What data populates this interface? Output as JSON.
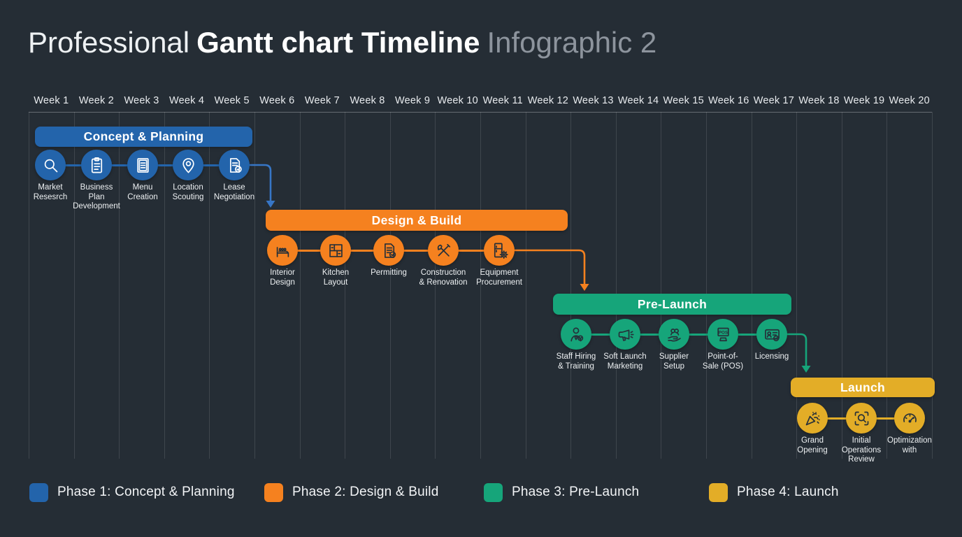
{
  "title": {
    "prefix": "Professional",
    "main": "Gantt chart Timeline",
    "suffix": "Infographic 2"
  },
  "colors": {
    "background": "#252d35",
    "phase1": "#2364ab",
    "phase2": "#f5811f",
    "phase3": "#16a57a",
    "phase4": "#e3ad27",
    "connector_blue": "#3776c6",
    "grid": "rgba(255,255,255,0.12)",
    "axis": "rgba(255,255,255,0.30)",
    "icon_light": "#ffffff",
    "icon_dark": "#263039",
    "text": "#eef1f3",
    "muted_text": "#8d949d"
  },
  "timeline": {
    "weeks": [
      "Week 1",
      "Week 2",
      "Week 3",
      "Week 4",
      "Week 5",
      "Week 6",
      "Week 7",
      "Week 8",
      "Week 9",
      "Week 10",
      "Week 11",
      "Week 12",
      "Week 13",
      "Week 14",
      "Week 15",
      "Week 16",
      "Week 17",
      "Week 18",
      "Week 19",
      "Week 20"
    ]
  },
  "chart_data": {
    "type": "gantt",
    "x_axis": {
      "unit": "week",
      "range": [
        1,
        20
      ]
    },
    "phases": [
      {
        "name": "Concept & Planning",
        "color": "#2364ab",
        "week_start": 1,
        "week_end": 5,
        "tasks": [
          {
            "icon": "search",
            "label_lines": [
              "Market",
              "Resesrch"
            ]
          },
          {
            "icon": "clipboard",
            "label_lines": [
              "Business",
              "Plan",
              "Development"
            ]
          },
          {
            "icon": "menu-card",
            "label_lines": [
              "Menu",
              "Creation"
            ]
          },
          {
            "icon": "map-pin",
            "label_lines": [
              "Location",
              "Scouting"
            ]
          },
          {
            "icon": "contract",
            "label_lines": [
              "Lease",
              "Negotiation"
            ]
          }
        ]
      },
      {
        "name": "Design & Build",
        "color": "#f5811f",
        "week_start": 6,
        "week_end": 12,
        "tasks": [
          {
            "icon": "sofa",
            "label_lines": [
              "Interior",
              "Design"
            ]
          },
          {
            "icon": "kitchen-layout",
            "label_lines": [
              "Kitchen",
              "Layout"
            ]
          },
          {
            "icon": "permit-doc",
            "label_lines": [
              "Permitting"
            ]
          },
          {
            "icon": "tools",
            "label_lines": [
              "Construction",
              "& Renovation"
            ]
          },
          {
            "icon": "fridge-gear",
            "label_lines": [
              "Equipment",
              "Procurement"
            ]
          }
        ]
      },
      {
        "name": "Pre-Launch",
        "color": "#16a57a",
        "week_start": 12,
        "week_end": 17,
        "tasks": [
          {
            "icon": "person-badge",
            "label_lines": [
              "Staff Hiring",
              "& Training"
            ]
          },
          {
            "icon": "megaphone",
            "label_lines": [
              "Soft Launch",
              "Marketing"
            ]
          },
          {
            "icon": "supplier-hand",
            "label_lines": [
              "Supplier",
              "Setup"
            ]
          },
          {
            "icon": "pos-terminal",
            "label_lines": [
              "Point-of-",
              "Sale (POS)"
            ]
          },
          {
            "icon": "license-card",
            "label_lines": [
              "Licensing"
            ]
          }
        ]
      },
      {
        "name": "Launch",
        "color": "#e3ad27",
        "week_start": 18,
        "week_end": 20,
        "tasks": [
          {
            "icon": "party-popper",
            "label_lines": [
              "Grand",
              "Opening"
            ]
          },
          {
            "icon": "review-scope",
            "label_lines": [
              "Initial",
              "Operations",
              "Review"
            ]
          },
          {
            "icon": "gauge",
            "label_lines": [
              "Optimization",
              "with"
            ]
          }
        ]
      }
    ]
  },
  "legend": [
    {
      "label": "Phase 1: Concept & Planning",
      "color": "#2364ab"
    },
    {
      "label": "Phase 2: Design & Build",
      "color": "#f5811f"
    },
    {
      "label": "Phase 3: Pre-Launch",
      "color": "#16a57a"
    },
    {
      "label": "Phase 4: Launch",
      "color": "#e3ad27"
    }
  ]
}
